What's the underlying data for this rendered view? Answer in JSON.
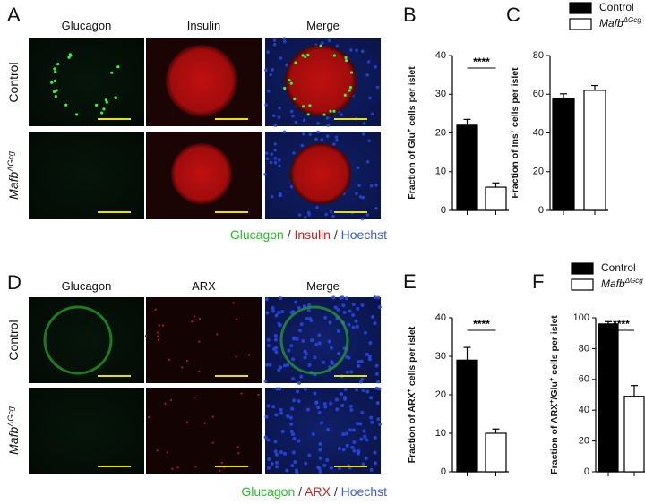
{
  "panels": [
    {
      "label": "A",
      "columns": [
        "Glucagon",
        "Insulin",
        "Merge"
      ],
      "rows": [
        {
          "text": "Control"
        },
        {
          "text": "Mafb",
          "sup": "ΔGcg"
        }
      ],
      "caption": [
        {
          "text": "Glucagon",
          "color": "#22c322"
        },
        {
          "text": " / ",
          "color": "#333333"
        },
        {
          "text": "Insulin",
          "color": "#e01818"
        },
        {
          "text": " / ",
          "color": "#333333"
        },
        {
          "text": "Hoechst",
          "color": "#3a5fd0"
        }
      ]
    },
    {
      "label": "D",
      "columns": [
        "Glucagon",
        "ARX",
        "Merge"
      ],
      "rows": [
        {
          "text": "Control"
        },
        {
          "text": "Mafb",
          "sup": "ΔGcg"
        }
      ],
      "caption": [
        {
          "text": "Glucagon",
          "color": "#22c322"
        },
        {
          "text": " / ",
          "color": "#333333"
        },
        {
          "text": "ARX",
          "color": "#e01818"
        },
        {
          "text": " / ",
          "color": "#333333"
        },
        {
          "text": "Hoechst",
          "color": "#3a5fd0"
        }
      ]
    }
  ],
  "chart_data": [
    {
      "type": "bar",
      "label": "B",
      "ylabel": [
        "Fraction of Glu",
        "+",
        " cells per islet"
      ],
      "ylim": [
        0,
        40
      ],
      "yticks": [
        0,
        10,
        20,
        30,
        40
      ],
      "significance": "****",
      "legend": false,
      "series": [
        {
          "color": "#000000",
          "values": [
            22
          ],
          "errors": [
            1.5
          ]
        },
        {
          "color": "#ffffff",
          "values": [
            6
          ],
          "errors": [
            1.1
          ]
        }
      ]
    },
    {
      "type": "bar",
      "label": "C",
      "ylabel": [
        "Fraction of Ins",
        "+",
        " cells per islet"
      ],
      "ylim": [
        0,
        80
      ],
      "yticks": [
        0,
        20,
        40,
        60,
        80
      ],
      "legend": true,
      "series": [
        {
          "name": "Control",
          "color": "#000000",
          "values": [
            58
          ],
          "errors": [
            2.2
          ]
        },
        {
          "name": "Mafb",
          "name_sup": "ΔGcg",
          "color": "#ffffff",
          "values": [
            62
          ],
          "errors": [
            2.5
          ]
        }
      ]
    },
    {
      "type": "bar",
      "label": "E",
      "ylabel": [
        "Fraction of ARX",
        "+",
        " cells per islet"
      ],
      "ylim": [
        0,
        40
      ],
      "yticks": [
        0,
        10,
        20,
        30,
        40
      ],
      "significance": "****",
      "legend": false,
      "series": [
        {
          "color": "#000000",
          "values": [
            29
          ],
          "errors": [
            3.3
          ]
        },
        {
          "color": "#ffffff",
          "values": [
            10
          ],
          "errors": [
            1.1
          ]
        }
      ]
    },
    {
      "type": "bar",
      "label": "F",
      "ylabel": [
        "Fraction of ARX",
        "+",
        "/Glu",
        "+",
        " cells per islet"
      ],
      "ylim": [
        0,
        100
      ],
      "yticks": [
        0,
        20,
        40,
        60,
        80,
        100
      ],
      "significance": "****",
      "legend": true,
      "series": [
        {
          "name": "Control",
          "color": "#000000",
          "values": [
            96
          ],
          "errors": [
            1.5
          ]
        },
        {
          "name": "Mafb",
          "name_sup": "ΔGcg",
          "color": "#ffffff",
          "values": [
            49
          ],
          "errors": [
            7
          ]
        }
      ]
    }
  ]
}
